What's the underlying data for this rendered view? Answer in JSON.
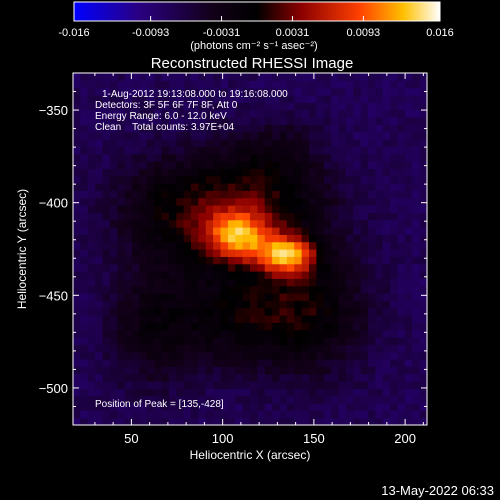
{
  "chart_data": {
    "type": "heatmap",
    "title": "Reconstructed RHESSI Image",
    "colorbar": {
      "min": -0.016,
      "max": 0.016,
      "ticks": [
        "-0.016",
        "-0.0093",
        "-0.0031",
        "0.0031",
        "0.0093",
        "0.016"
      ],
      "label": "(photons cm⁻² s⁻¹ asec⁻²)",
      "colormap": [
        "#0000ff",
        "#1a0055",
        "#000000",
        "#8b0000",
        "#ff4500",
        "#ffd700",
        "#ffffff"
      ]
    },
    "xlabel": "Heliocentric X (arcsec)",
    "ylabel": "Heliocentric Y (arcsec)",
    "xlim": [
      18,
      212
    ],
    "ylim": [
      -520,
      -330
    ],
    "xticks": [
      50,
      100,
      150,
      200
    ],
    "yticks": [
      -350,
      -400,
      -450,
      -500
    ],
    "annotations": [
      "1-Aug-2012 19:13:08.000 to 19:16:08.000",
      "Detectors: 3F 5F 6F 7F 8F, Att 0",
      "Energy Range: 6.0 - 12.0 keV",
      "Clean    Total counts: 3.97E+04"
    ],
    "peak_text": "Position of Peak = [135,-428]",
    "peak": [
      135,
      -428
    ],
    "sources": [
      {
        "x": 135,
        "y": -428,
        "amp": 0.016,
        "sx": 11,
        "sy": 7
      },
      {
        "x": 108,
        "y": -418,
        "amp": 0.014,
        "sx": 12,
        "sy": 9
      },
      {
        "x": 120,
        "y": -400,
        "amp": 0.008,
        "sx": 26,
        "sy": 18
      },
      {
        "x": 75,
        "y": -405,
        "amp": 0.0065,
        "sx": 24,
        "sy": 22
      },
      {
        "x": 110,
        "y": -460,
        "amp": 0.0065,
        "sx": 32,
        "sy": 20
      },
      {
        "x": 150,
        "y": -455,
        "amp": 0.005,
        "sx": 22,
        "sy": 26
      },
      {
        "x": 60,
        "y": -470,
        "amp": 0.004,
        "sx": 16,
        "sy": 22
      },
      {
        "x": 130,
        "y": -370,
        "amp": 0.003,
        "sx": 18,
        "sy": 12
      }
    ],
    "background": -0.0075
  },
  "timestamp": "13-May-2022 06:33"
}
